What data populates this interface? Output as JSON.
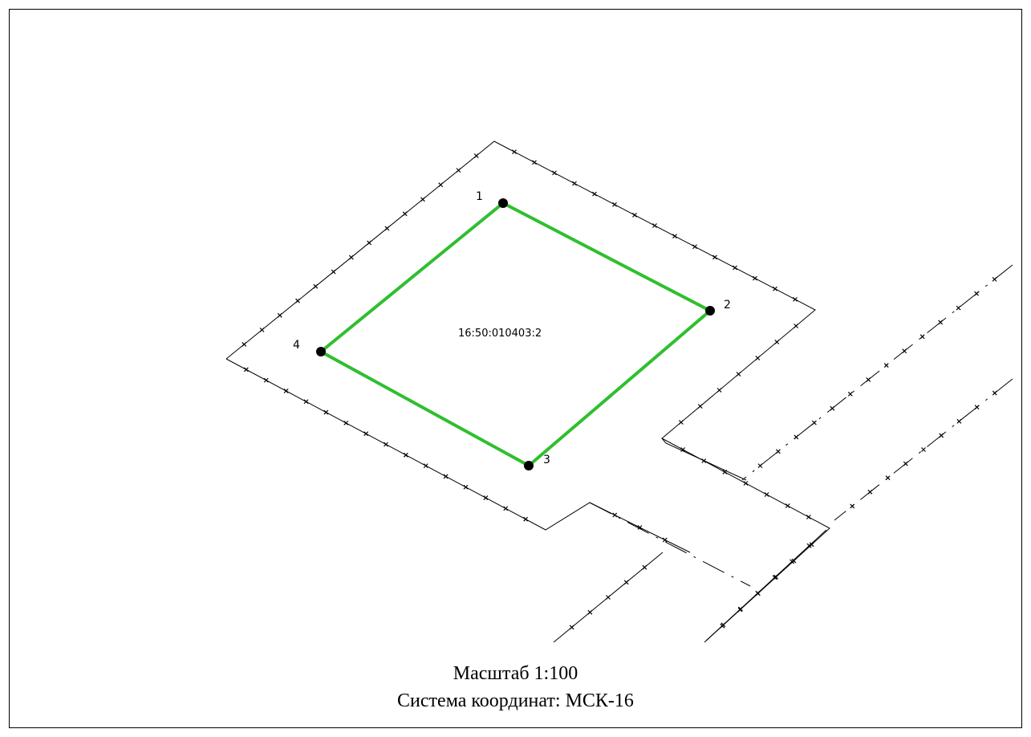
{
  "plan": {
    "parcel_number": "16:50:010403:2",
    "parcel_color": "#2fbf2f",
    "points": [
      {
        "label": "1"
      },
      {
        "label": "2"
      },
      {
        "label": "3"
      },
      {
        "label": "4"
      }
    ]
  },
  "footer": {
    "scale": "Масштаб 1:100",
    "coordinate_system": "Система координат: МСК-16"
  }
}
